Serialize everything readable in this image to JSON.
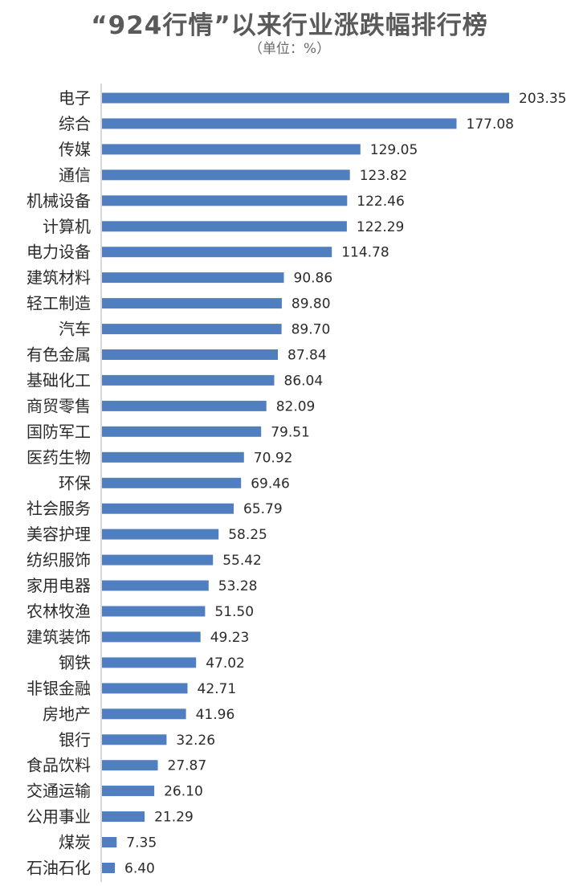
{
  "header": {
    "title": "“924行情”以来行业涨跌幅排行榜",
    "subtitle": "（单位：%）"
  },
  "colors": {
    "bar": "#4f7fc0",
    "axis": "#b0b0b0",
    "text": "#2b2b2b"
  },
  "chart_data": {
    "type": "bar",
    "orientation": "horizontal",
    "title": "“924行情”以来行业涨跌幅排行榜",
    "subtitle": "（单位：%）",
    "categories": [
      "电子",
      "综合",
      "传媒",
      "通信",
      "机械设备",
      "计算机",
      "电力设备",
      "建筑材料",
      "轻工制造",
      "汽车",
      "有色金属",
      "基础化工",
      "商贸零售",
      "国防军工",
      "医药生物",
      "环保",
      "社会服务",
      "美容护理",
      "纺织服饰",
      "家用电器",
      "农林牧渔",
      "建筑装饰",
      "钢铁",
      "非银金融",
      "房地产",
      "银行",
      "食品饮料",
      "交通运输",
      "公用事业",
      "煤炭",
      "石油石化"
    ],
    "values": [
      203.35,
      177.08,
      129.05,
      123.82,
      122.46,
      122.29,
      114.78,
      90.86,
      89.8,
      89.7,
      87.84,
      86.04,
      82.09,
      79.51,
      70.92,
      69.46,
      65.79,
      58.25,
      55.42,
      53.28,
      51.5,
      49.23,
      47.02,
      42.71,
      41.96,
      32.26,
      27.87,
      26.1,
      21.29,
      7.35,
      6.4
    ],
    "value_labels": [
      "203.35",
      "177.08",
      "129.05",
      "123.82",
      "122.46",
      "122.29",
      "114.78",
      "90.86",
      "89.80",
      "89.70",
      "87.84",
      "86.04",
      "82.09",
      "79.51",
      "70.92",
      "69.46",
      "65.79",
      "58.25",
      "55.42",
      "53.28",
      "51.50",
      "49.23",
      "47.02",
      "42.71",
      "41.96",
      "32.26",
      "27.87",
      "26.10",
      "21.29",
      "7.35",
      "6.40"
    ],
    "xlim": [
      0,
      203.35
    ],
    "grid": false,
    "legend": "none"
  }
}
